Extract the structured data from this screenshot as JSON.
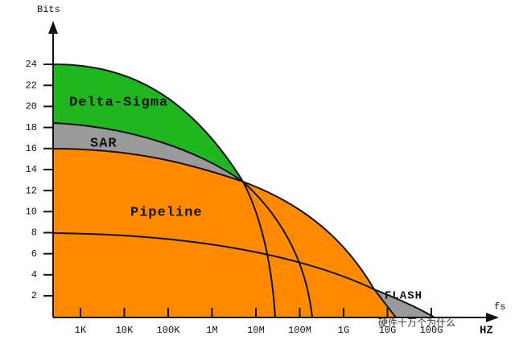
{
  "y_axis": {
    "label": "Bits",
    "ticks": [
      2,
      4,
      6,
      8,
      10,
      12,
      14,
      16,
      18,
      20,
      22,
      24
    ]
  },
  "x_axis": {
    "label": "fs",
    "unit": "HZ",
    "ticks": [
      "1K",
      "10K",
      "100K",
      "1M",
      "10M",
      "100M",
      "1G",
      "10G",
      "100G"
    ]
  },
  "regions": {
    "delta_sigma": "Delta-Sigma",
    "sar": "SAR",
    "pipeline": "Pipeline",
    "flash": "FLASH"
  },
  "watermark": "硬件十万个为什么"
}
